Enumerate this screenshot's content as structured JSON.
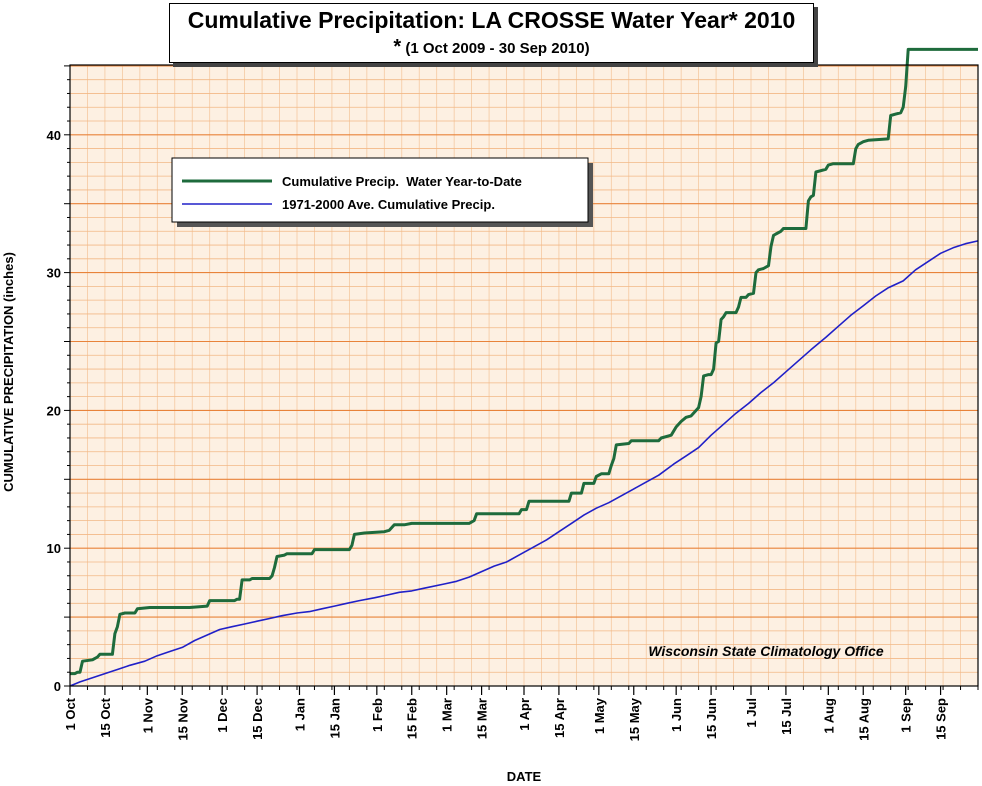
{
  "chart_data": {
    "type": "line",
    "title": "Cumulative Precipitation: LA CROSSE Water Year* 2010",
    "subtitle": "(1 Oct 2009 - 30 Sep 2010)",
    "subtitle_marker": "*",
    "xlabel": "DATE",
    "ylabel": "CUMULATIVE PRECIPITATION (inches)",
    "ylim": [
      0,
      44
    ],
    "yticks": [
      0,
      10,
      20,
      30,
      40
    ],
    "x_axis_note": "x values are dates of water year 2010",
    "xlim": [
      "2009-10-01",
      "2010-09-30"
    ],
    "x_tick_labels": [
      {
        "date": "2009-10-01",
        "label": "1 Oct"
      },
      {
        "date": "2009-10-15",
        "label": "15 Oct"
      },
      {
        "date": "2009-11-01",
        "label": "1 Nov"
      },
      {
        "date": "2009-11-15",
        "label": "15 Nov"
      },
      {
        "date": "2009-12-01",
        "label": "1 Dec"
      },
      {
        "date": "2009-12-15",
        "label": "15 Dec"
      },
      {
        "date": "2010-01-01",
        "label": "1 Jan"
      },
      {
        "date": "2010-01-15",
        "label": "15 Jan"
      },
      {
        "date": "2010-02-01",
        "label": "1 Feb"
      },
      {
        "date": "2010-02-15",
        "label": "15 Feb"
      },
      {
        "date": "2010-03-01",
        "label": "1 Mar"
      },
      {
        "date": "2010-03-15",
        "label": "15 Mar"
      },
      {
        "date": "2010-04-01",
        "label": "1 Apr"
      },
      {
        "date": "2010-04-15",
        "label": "15 Apr"
      },
      {
        "date": "2010-05-01",
        "label": "1 May"
      },
      {
        "date": "2010-05-15",
        "label": "15 May"
      },
      {
        "date": "2010-06-01",
        "label": "1 Jun"
      },
      {
        "date": "2010-06-15",
        "label": "15 Jun"
      },
      {
        "date": "2010-07-01",
        "label": "1 Jul"
      },
      {
        "date": "2010-07-15",
        "label": "15 Jul"
      },
      {
        "date": "2010-08-01",
        "label": "1 Aug"
      },
      {
        "date": "2010-08-15",
        "label": "15 Aug"
      },
      {
        "date": "2010-09-01",
        "label": "1 Sep"
      },
      {
        "date": "2010-09-15",
        "label": "15 Sep"
      }
    ],
    "grid": true,
    "legend_position": "upper-left",
    "annotation": "Wisconsin State Climatology Office",
    "colors": {
      "plot_background": "#fdf0e2",
      "grid_major": "#e8833a",
      "grid_minor": "#f2b886",
      "grid_vertical": "#f5c8a0"
    },
    "series": [
      {
        "name": "Cumulative Precip.  Water Year-to-Date",
        "color": "#1e6b3c",
        "width": 3,
        "points": [
          [
            "2009-10-01",
            0.9
          ],
          [
            "2009-10-03",
            0.9
          ],
          [
            "2009-10-04",
            1.0
          ],
          [
            "2009-10-05",
            1.0
          ],
          [
            "2009-10-06",
            1.8
          ],
          [
            "2009-10-10",
            1.9
          ],
          [
            "2009-10-11",
            2.0
          ],
          [
            "2009-10-12",
            2.1
          ],
          [
            "2009-10-13",
            2.3
          ],
          [
            "2009-10-18",
            2.3
          ],
          [
            "2009-10-19",
            3.8
          ],
          [
            "2009-10-20",
            4.3
          ],
          [
            "2009-10-21",
            5.2
          ],
          [
            "2009-10-23",
            5.3
          ],
          [
            "2009-10-27",
            5.3
          ],
          [
            "2009-10-28",
            5.6
          ],
          [
            "2009-11-02",
            5.7
          ],
          [
            "2009-11-18",
            5.7
          ],
          [
            "2009-11-25",
            5.8
          ],
          [
            "2009-11-26",
            6.2
          ],
          [
            "2009-12-06",
            6.2
          ],
          [
            "2009-12-07",
            6.3
          ],
          [
            "2009-12-08",
            6.3
          ],
          [
            "2009-12-09",
            7.7
          ],
          [
            "2009-12-12",
            7.7
          ],
          [
            "2009-12-13",
            7.8
          ],
          [
            "2009-12-20",
            7.8
          ],
          [
            "2009-12-21",
            8.0
          ],
          [
            "2009-12-22",
            8.6
          ],
          [
            "2009-12-23",
            9.4
          ],
          [
            "2009-12-26",
            9.5
          ],
          [
            "2009-12-27",
            9.6
          ],
          [
            "2010-01-06",
            9.6
          ],
          [
            "2010-01-07",
            9.9
          ],
          [
            "2010-01-21",
            9.9
          ],
          [
            "2010-01-22",
            10.2
          ],
          [
            "2010-01-23",
            11.0
          ],
          [
            "2010-01-27",
            11.1
          ],
          [
            "2010-02-04",
            11.2
          ],
          [
            "2010-02-06",
            11.3
          ],
          [
            "2010-02-08",
            11.7
          ],
          [
            "2010-02-12",
            11.7
          ],
          [
            "2010-02-15",
            11.8
          ],
          [
            "2010-03-10",
            11.8
          ],
          [
            "2010-03-12",
            12.0
          ],
          [
            "2010-03-13",
            12.5
          ],
          [
            "2010-03-30",
            12.5
          ],
          [
            "2010-03-31",
            12.8
          ],
          [
            "2010-04-02",
            12.8
          ],
          [
            "2010-04-03",
            13.4
          ],
          [
            "2010-04-19",
            13.4
          ],
          [
            "2010-04-20",
            14.0
          ],
          [
            "2010-04-24",
            14.0
          ],
          [
            "2010-04-25",
            14.7
          ],
          [
            "2010-04-29",
            14.7
          ],
          [
            "2010-04-30",
            15.2
          ],
          [
            "2010-05-02",
            15.4
          ],
          [
            "2010-05-05",
            15.4
          ],
          [
            "2010-05-06",
            16.0
          ],
          [
            "2010-05-07",
            16.5
          ],
          [
            "2010-05-08",
            17.5
          ],
          [
            "2010-05-13",
            17.6
          ],
          [
            "2010-05-14",
            17.8
          ],
          [
            "2010-05-25",
            17.8
          ],
          [
            "2010-05-26",
            18.0
          ],
          [
            "2010-05-30",
            18.2
          ],
          [
            "2010-06-01",
            18.8
          ],
          [
            "2010-06-03",
            19.2
          ],
          [
            "2010-06-05",
            19.5
          ],
          [
            "2010-06-07",
            19.6
          ],
          [
            "2010-06-09",
            20.0
          ],
          [
            "2010-06-10",
            20.2
          ],
          [
            "2010-06-11",
            21.0
          ],
          [
            "2010-06-12",
            22.5
          ],
          [
            "2010-06-14",
            22.6
          ],
          [
            "2010-06-15",
            22.6
          ],
          [
            "2010-06-16",
            23.0
          ],
          [
            "2010-06-17",
            24.9
          ],
          [
            "2010-06-18",
            25.0
          ],
          [
            "2010-06-19",
            26.6
          ],
          [
            "2010-06-20",
            26.8
          ],
          [
            "2010-06-21",
            27.1
          ],
          [
            "2010-06-25",
            27.1
          ],
          [
            "2010-06-26",
            27.5
          ],
          [
            "2010-06-27",
            28.2
          ],
          [
            "2010-06-29",
            28.2
          ],
          [
            "2010-06-30",
            28.4
          ],
          [
            "2010-07-02",
            28.5
          ],
          [
            "2010-07-03",
            30.0
          ],
          [
            "2010-07-04",
            30.2
          ],
          [
            "2010-07-06",
            30.3
          ],
          [
            "2010-07-08",
            30.5
          ],
          [
            "2010-07-09",
            31.9
          ],
          [
            "2010-07-10",
            32.7
          ],
          [
            "2010-07-11",
            32.8
          ],
          [
            "2010-07-13",
            33.0
          ],
          [
            "2010-07-14",
            33.2
          ],
          [
            "2010-07-23",
            33.2
          ],
          [
            "2010-07-24",
            35.2
          ],
          [
            "2010-07-25",
            35.5
          ],
          [
            "2010-07-26",
            35.6
          ],
          [
            "2010-07-27",
            37.3
          ],
          [
            "2010-07-31",
            37.5
          ],
          [
            "2010-08-01",
            37.8
          ],
          [
            "2010-08-03",
            37.9
          ],
          [
            "2010-08-11",
            37.9
          ],
          [
            "2010-08-12",
            39.0
          ],
          [
            "2010-08-13",
            39.3
          ],
          [
            "2010-08-15",
            39.5
          ],
          [
            "2010-08-17",
            39.6
          ],
          [
            "2010-08-25",
            39.7
          ],
          [
            "2010-08-26",
            41.4
          ],
          [
            "2010-08-28",
            41.5
          ],
          [
            "2010-08-30",
            41.6
          ],
          [
            "2010-08-31",
            42.0
          ],
          [
            "2010-09-01",
            43.5
          ],
          [
            "2010-09-02",
            46.2
          ],
          [
            "2010-09-30",
            46.2
          ]
        ]
      },
      {
        "name": "1971-2000 Ave. Cumulative Precip.",
        "color": "#2020c8",
        "width": 1.6,
        "points": [
          [
            "2009-10-01",
            0.0
          ],
          [
            "2009-10-05",
            0.3
          ],
          [
            "2009-10-10",
            0.6
          ],
          [
            "2009-10-15",
            0.9
          ],
          [
            "2009-10-20",
            1.2
          ],
          [
            "2009-10-25",
            1.5
          ],
          [
            "2009-10-31",
            1.8
          ],
          [
            "2009-11-05",
            2.2
          ],
          [
            "2009-11-10",
            2.5
          ],
          [
            "2009-11-15",
            2.8
          ],
          [
            "2009-11-20",
            3.3
          ],
          [
            "2009-11-25",
            3.7
          ],
          [
            "2009-11-30",
            4.1
          ],
          [
            "2009-12-05",
            4.3
          ],
          [
            "2009-12-10",
            4.5
          ],
          [
            "2009-12-15",
            4.7
          ],
          [
            "2009-12-20",
            4.9
          ],
          [
            "2009-12-25",
            5.1
          ],
          [
            "2009-12-31",
            5.3
          ],
          [
            "2010-01-05",
            5.4
          ],
          [
            "2010-01-10",
            5.6
          ],
          [
            "2010-01-15",
            5.8
          ],
          [
            "2010-01-20",
            6.0
          ],
          [
            "2010-01-25",
            6.2
          ],
          [
            "2010-01-31",
            6.4
          ],
          [
            "2010-02-05",
            6.6
          ],
          [
            "2010-02-10",
            6.8
          ],
          [
            "2010-02-15",
            6.9
          ],
          [
            "2010-02-20",
            7.1
          ],
          [
            "2010-02-28",
            7.4
          ],
          [
            "2010-03-05",
            7.6
          ],
          [
            "2010-03-10",
            7.9
          ],
          [
            "2010-03-15",
            8.3
          ],
          [
            "2010-03-20",
            8.7
          ],
          [
            "2010-03-25",
            9.0
          ],
          [
            "2010-03-31",
            9.6
          ],
          [
            "2010-04-05",
            10.1
          ],
          [
            "2010-04-10",
            10.6
          ],
          [
            "2010-04-15",
            11.2
          ],
          [
            "2010-04-20",
            11.8
          ],
          [
            "2010-04-25",
            12.4
          ],
          [
            "2010-04-30",
            12.9
          ],
          [
            "2010-05-05",
            13.3
          ],
          [
            "2010-05-10",
            13.8
          ],
          [
            "2010-05-15",
            14.3
          ],
          [
            "2010-05-20",
            14.8
          ],
          [
            "2010-05-25",
            15.3
          ],
          [
            "2010-05-31",
            16.1
          ],
          [
            "2010-06-05",
            16.7
          ],
          [
            "2010-06-10",
            17.3
          ],
          [
            "2010-06-15",
            18.2
          ],
          [
            "2010-06-20",
            19.0
          ],
          [
            "2010-06-25",
            19.8
          ],
          [
            "2010-06-30",
            20.5
          ],
          [
            "2010-07-05",
            21.3
          ],
          [
            "2010-07-10",
            22.0
          ],
          [
            "2010-07-15",
            22.8
          ],
          [
            "2010-07-20",
            23.6
          ],
          [
            "2010-07-25",
            24.4
          ],
          [
            "2010-07-31",
            25.3
          ],
          [
            "2010-08-05",
            26.1
          ],
          [
            "2010-08-10",
            26.9
          ],
          [
            "2010-08-15",
            27.6
          ],
          [
            "2010-08-20",
            28.3
          ],
          [
            "2010-08-25",
            28.9
          ],
          [
            "2010-08-31",
            29.4
          ],
          [
            "2010-09-05",
            30.2
          ],
          [
            "2010-09-10",
            30.8
          ],
          [
            "2010-09-15",
            31.4
          ],
          [
            "2010-09-20",
            31.8
          ],
          [
            "2010-09-25",
            32.1
          ],
          [
            "2010-09-30",
            32.3
          ]
        ]
      }
    ]
  }
}
